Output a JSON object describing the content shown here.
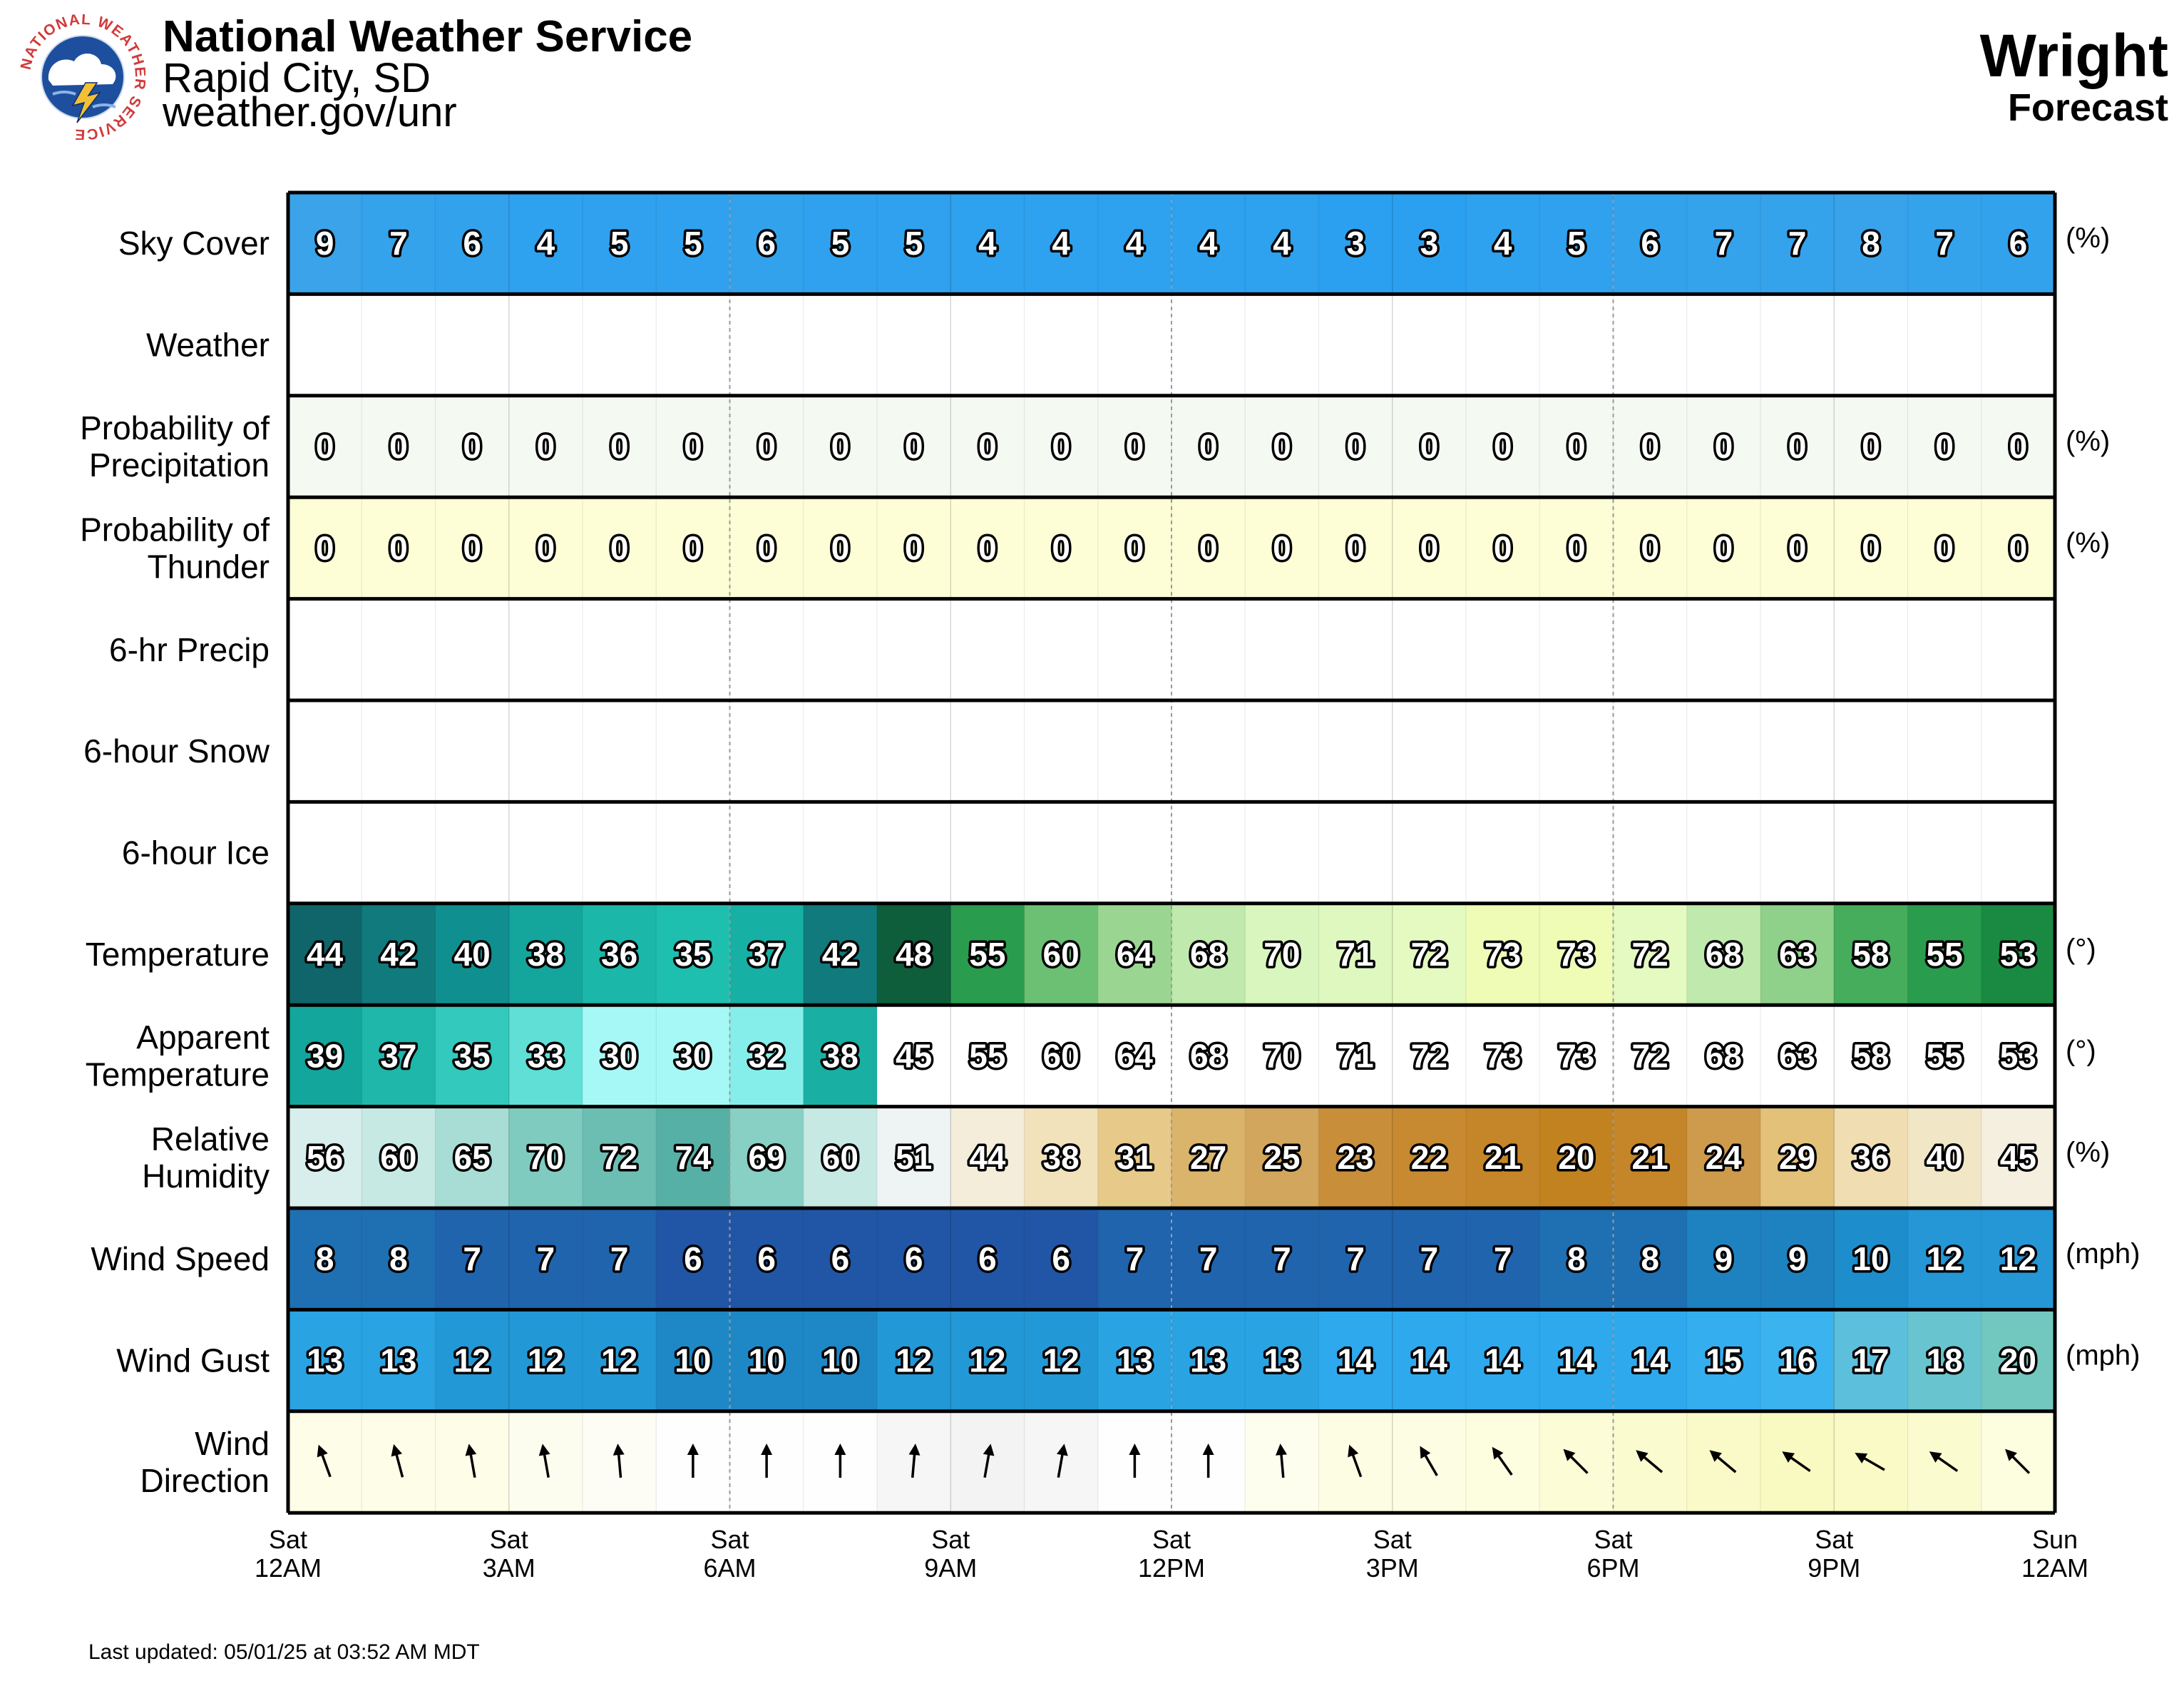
{
  "header": {
    "office": "National Weather Service",
    "city": "Rapid City, SD",
    "site": "weather.gov/unr",
    "location": "Wright",
    "subtitle": "Forecast"
  },
  "logo": {
    "icon": "nws-logo",
    "text": "NATIONAL WEATHER SERVICE"
  },
  "footer": {
    "updated": "Last updated: 05/01/25 at 03:52 AM MDT"
  },
  "colors": {
    "sky": "#2ea1ee",
    "pop": "#f4faf2",
    "thunder": "#fdfdd6",
    "border": "#000000"
  },
  "chart_data": {
    "type": "table",
    "time_axis": [
      {
        "day": "Sat",
        "time": "12AM"
      },
      {
        "day": "Sat",
        "time": "3AM"
      },
      {
        "day": "Sat",
        "time": "6AM"
      },
      {
        "day": "Sat",
        "time": "9AM"
      },
      {
        "day": "Sat",
        "time": "12PM"
      },
      {
        "day": "Sat",
        "time": "3PM"
      },
      {
        "day": "Sat",
        "time": "6PM"
      },
      {
        "day": "Sat",
        "time": "9PM"
      },
      {
        "day": "Sun",
        "time": "12AM"
      }
    ],
    "rows": [
      {
        "label": [
          "Sky Cover"
        ],
        "unit": "(%)",
        "style": "sky",
        "values": [
          9,
          7,
          6,
          4,
          5,
          5,
          6,
          5,
          5,
          4,
          4,
          4,
          4,
          4,
          3,
          3,
          4,
          5,
          6,
          7,
          7,
          8,
          7,
          6
        ]
      },
      {
        "label": [
          "Weather"
        ],
        "unit": "",
        "style": "blank",
        "values": []
      },
      {
        "label": [
          "Probability of",
          "Precipitation"
        ],
        "unit": "(%)",
        "style": "pop",
        "values": [
          0,
          0,
          0,
          0,
          0,
          0,
          0,
          0,
          0,
          0,
          0,
          0,
          0,
          0,
          0,
          0,
          0,
          0,
          0,
          0,
          0,
          0,
          0,
          0
        ]
      },
      {
        "label": [
          "Probability of",
          "Thunder"
        ],
        "unit": "(%)",
        "style": "thunder",
        "values": [
          0,
          0,
          0,
          0,
          0,
          0,
          0,
          0,
          0,
          0,
          0,
          0,
          0,
          0,
          0,
          0,
          0,
          0,
          0,
          0,
          0,
          0,
          0,
          0
        ]
      },
      {
        "label": [
          "6-hr Precip"
        ],
        "unit": "",
        "style": "blank",
        "values": []
      },
      {
        "label": [
          "6-hour Snow"
        ],
        "unit": "",
        "style": "blank",
        "values": []
      },
      {
        "label": [
          "6-hour Ice"
        ],
        "unit": "",
        "style": "blank",
        "values": []
      },
      {
        "label": [
          "Temperature"
        ],
        "unit": "(°)",
        "style": "temp",
        "values": [
          44,
          42,
          40,
          38,
          36,
          35,
          37,
          42,
          48,
          55,
          60,
          64,
          68,
          70,
          71,
          72,
          73,
          73,
          72,
          68,
          63,
          58,
          55,
          53
        ]
      },
      {
        "label": [
          "Apparent",
          "Temperature"
        ],
        "unit": "(°)",
        "style": "apparent",
        "values": [
          39,
          37,
          35,
          33,
          30,
          30,
          32,
          38,
          45,
          55,
          60,
          64,
          68,
          70,
          71,
          72,
          73,
          73,
          72,
          68,
          63,
          58,
          55,
          53
        ]
      },
      {
        "label": [
          "Relative",
          "Humidity"
        ],
        "unit": "(%)",
        "style": "rh",
        "values": [
          56,
          60,
          65,
          70,
          72,
          74,
          69,
          60,
          51,
          44,
          38,
          31,
          27,
          25,
          23,
          22,
          21,
          20,
          21,
          24,
          29,
          36,
          40,
          45
        ]
      },
      {
        "label": [
          "Wind Speed"
        ],
        "unit": "(mph)",
        "style": "wind",
        "values": [
          8,
          8,
          7,
          7,
          7,
          6,
          6,
          6,
          6,
          6,
          6,
          7,
          7,
          7,
          7,
          7,
          7,
          8,
          8,
          9,
          9,
          10,
          12,
          12
        ]
      },
      {
        "label": [
          "Wind Gust"
        ],
        "unit": "(mph)",
        "style": "gust",
        "values": [
          13,
          13,
          12,
          12,
          12,
          10,
          10,
          10,
          12,
          12,
          12,
          13,
          13,
          13,
          14,
          14,
          14,
          14,
          14,
          15,
          16,
          17,
          18,
          20
        ]
      },
      {
        "label": [
          "Wind",
          "Direction"
        ],
        "unit": "",
        "style": "dir",
        "values": [
          160,
          165,
          170,
          170,
          175,
          180,
          180,
          180,
          185,
          190,
          190,
          180,
          180,
          175,
          160,
          150,
          145,
          135,
          130,
          130,
          125,
          120,
          125,
          135
        ]
      }
    ]
  }
}
